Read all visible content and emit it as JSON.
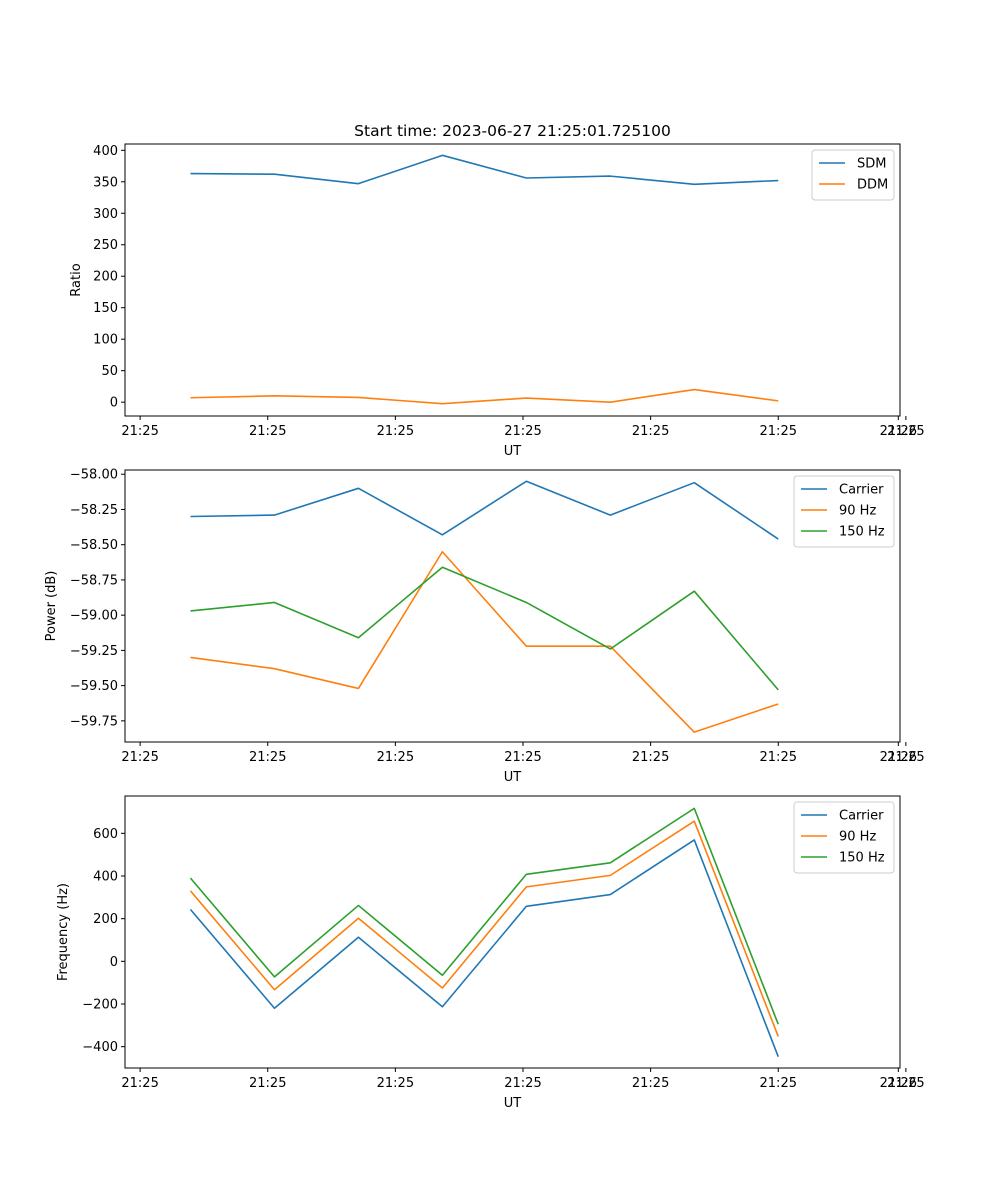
{
  "figure": {
    "title": "Start time: 2023-06-27 21:25:01.725100"
  },
  "chart_data": [
    {
      "type": "line",
      "title": "Start time: 2023-06-27 21:25:01.725100",
      "xlabel": "UT",
      "ylabel": "Ratio",
      "x_tick_labels": [
        "21:25",
        "21:25",
        "21:25",
        "21:25",
        "21:25",
        "21:25",
        "21:25"
      ],
      "x_last_tick_label": "21:26",
      "y_ticks": [
        0,
        50,
        100,
        150,
        200,
        250,
        300,
        350,
        400
      ],
      "y_tick_labels": [
        "0",
        "50",
        "100",
        "150",
        "200",
        "250",
        "300",
        "350",
        "400"
      ],
      "ylim": [
        -22,
        410
      ],
      "legend_position": "upper right",
      "grid": false,
      "series": [
        {
          "name": "SDM",
          "color": "#1f77b4",
          "values": [
            363,
            362,
            347,
            392,
            356,
            359,
            346,
            352
          ]
        },
        {
          "name": "DDM",
          "color": "#ff7f0e",
          "values": [
            7,
            10,
            7.5,
            -2.5,
            6.5,
            0,
            20,
            2
          ]
        }
      ]
    },
    {
      "type": "line",
      "xlabel": "UT",
      "ylabel": "Power (dB)",
      "x_tick_labels": [
        "21:25",
        "21:25",
        "21:25",
        "21:25",
        "21:25",
        "21:25",
        "21:25"
      ],
      "x_last_tick_label": "21:26",
      "y_ticks": [
        -59.75,
        -59.5,
        -59.25,
        -59.0,
        -58.75,
        -58.5,
        -58.25,
        -58.0
      ],
      "y_tick_labels": [
        "−59.75",
        "−59.50",
        "−59.25",
        "−59.00",
        "−58.75",
        "−58.50",
        "−58.25",
        "−58.00"
      ],
      "ylim": [
        -59.9,
        -57.97
      ],
      "legend_position": "upper right",
      "grid": false,
      "series": [
        {
          "name": "Carrier",
          "color": "#1f77b4",
          "values": [
            -58.3,
            -58.29,
            -58.1,
            -58.43,
            -58.05,
            -58.29,
            -58.06,
            -58.46
          ]
        },
        {
          "name": "90 Hz",
          "color": "#ff7f0e",
          "values": [
            -59.3,
            -59.38,
            -59.52,
            -58.55,
            -59.22,
            -59.22,
            -59.83,
            -59.63
          ]
        },
        {
          "name": "150 Hz",
          "color": "#2ca02c",
          "values": [
            -58.97,
            -58.91,
            -59.16,
            -58.66,
            -58.91,
            -59.24,
            -58.83,
            -59.53
          ]
        }
      ]
    },
    {
      "type": "line",
      "xlabel": "UT",
      "ylabel": "Frequency (Hz)",
      "x_tick_labels": [
        "21:25",
        "21:25",
        "21:25",
        "21:25",
        "21:25",
        "21:25",
        "21:25"
      ],
      "x_last_tick_label": "21:26",
      "y_ticks": [
        -400,
        -200,
        0,
        200,
        400,
        600
      ],
      "y_tick_labels": [
        "−400",
        "−200",
        "0",
        "200",
        "400",
        "600"
      ],
      "ylim": [
        -500,
        775
      ],
      "legend_position": "upper right",
      "grid": false,
      "series": [
        {
          "name": "Carrier",
          "color": "#1f77b4",
          "values": [
            243,
            -220,
            113,
            -213,
            258,
            313,
            569,
            -447
          ]
        },
        {
          "name": "90 Hz",
          "color": "#ff7f0e",
          "values": [
            330,
            -133,
            202,
            -125,
            349,
            403,
            657,
            -352
          ]
        },
        {
          "name": "150 Hz",
          "color": "#2ca02c",
          "values": [
            390,
            -73,
            262,
            -65,
            408,
            462,
            717,
            -295
          ]
        }
      ]
    }
  ]
}
